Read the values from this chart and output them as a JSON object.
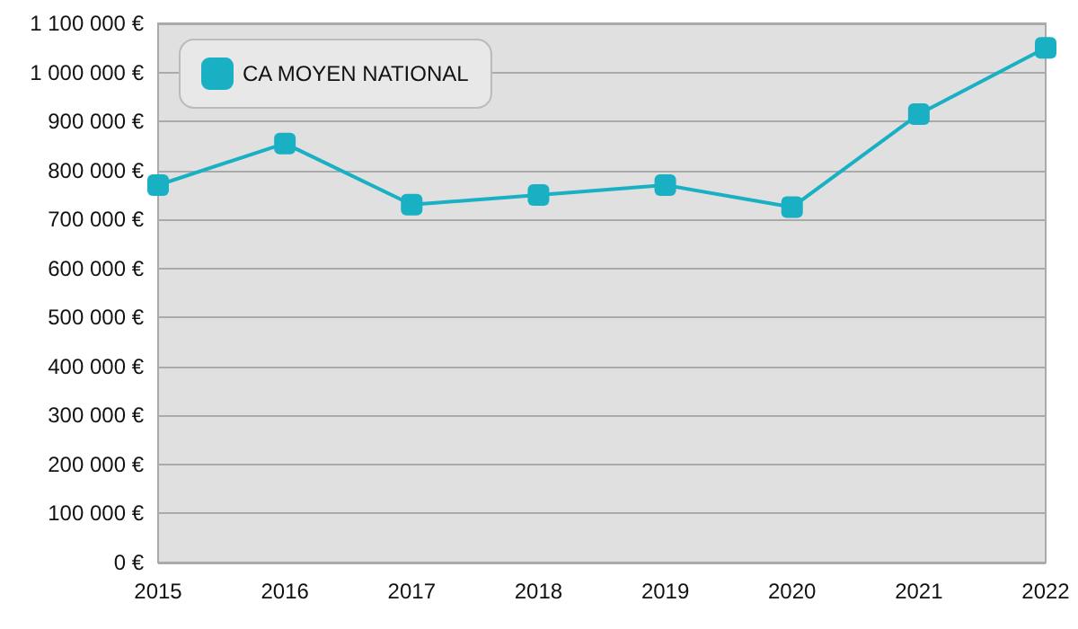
{
  "chart_data": {
    "type": "line",
    "categories": [
      "2015",
      "2016",
      "2017",
      "2018",
      "2019",
      "2020",
      "2021",
      "2022"
    ],
    "series": [
      {
        "name": "CA MOYEN NATIONAL",
        "color": "#1ab0c4",
        "values": [
          770000,
          855000,
          730000,
          750000,
          770000,
          725000,
          915000,
          1050000
        ]
      }
    ],
    "ylim": [
      0,
      1100000
    ],
    "yticks": [
      {
        "value": 0,
        "label": "0 €"
      },
      {
        "value": 100000,
        "label": "100 000 €"
      },
      {
        "value": 200000,
        "label": "200 000 €"
      },
      {
        "value": 300000,
        "label": "300 000 €"
      },
      {
        "value": 400000,
        "label": "400 000 €"
      },
      {
        "value": 500000,
        "label": "500 000 €"
      },
      {
        "value": 600000,
        "label": "600 000 €"
      },
      {
        "value": 700000,
        "label": "700 000 €"
      },
      {
        "value": 800000,
        "label": "800 000 €"
      },
      {
        "value": 900000,
        "label": "900 000 €"
      },
      {
        "value": 1000000,
        "label": "1 000 000 €"
      },
      {
        "value": 1100000,
        "label": "1 100 000 €"
      }
    ],
    "grid": "y",
    "legend": "top left",
    "marker": "square",
    "line_style": "solid"
  }
}
